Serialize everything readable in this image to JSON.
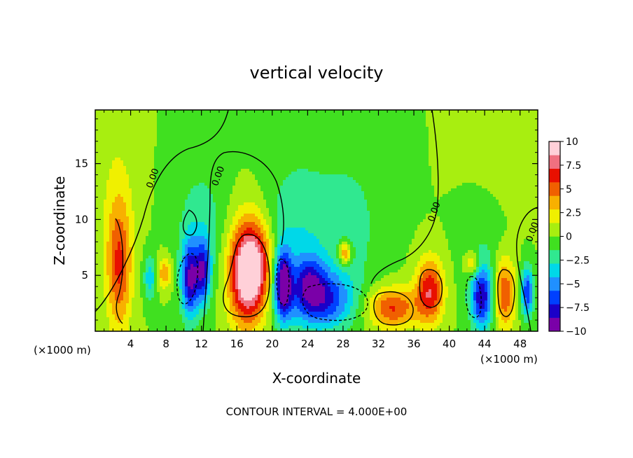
{
  "chart_data": {
    "type": "heatmap",
    "title": "vertical velocity",
    "xlabel": "X-coordinate",
    "ylabel": "Z-coordinate",
    "x_unit_left": "(×1000 m)",
    "x_unit_right": "(×1000 m)",
    "footer": "CONTOUR INTERVAL = 4.000E+00",
    "xlim": [
      0,
      50
    ],
    "ylim": [
      0,
      19.8
    ],
    "x_ticks": [
      4,
      8,
      12,
      16,
      20,
      24,
      28,
      32,
      36,
      40,
      44,
      48
    ],
    "y_ticks": [
      5,
      10,
      15
    ],
    "colorbar": {
      "min": -10,
      "max": 10,
      "tick_values": [
        10,
        7.5,
        5,
        2.5,
        0,
        -2.5,
        -5,
        -7.5,
        -10
      ],
      "tick_labels": [
        "10",
        "7.5",
        "5",
        "2.5",
        "0",
        "−2.5",
        "−5",
        "−7.5",
        "−10"
      ],
      "colors": [
        "#7a00a8",
        "#1a00c8",
        "#0040ff",
        "#2090ff",
        "#00d8e8",
        "#30e890",
        "#40e020",
        "#a8ee10",
        "#f0f000",
        "#f8b000",
        "#f06000",
        "#e81000",
        "#f07080",
        "#ffd0d8"
      ]
    },
    "contour_labels": [
      {
        "text": "0.00",
        "x": 6.8,
        "y": 13.6
      },
      {
        "text": "0.00",
        "x": 14.2,
        "y": 13.8
      },
      {
        "text": "0.00",
        "x": 38.6,
        "y": 10.6
      },
      {
        "text": "0.00",
        "x": 49.7,
        "y": 8.8
      }
    ],
    "features": [
      {
        "x": 2.7,
        "z": 5.6,
        "sx": 1.0,
        "sz": 4.0,
        "v": 5.5
      },
      {
        "x": 17.2,
        "z": 5.2,
        "sx": 1.5,
        "sz": 3.2,
        "v": 11
      },
      {
        "x": 18.6,
        "z": 6.3,
        "sx": 1.3,
        "sz": 2.6,
        "v": 3
      },
      {
        "x": 33.5,
        "z": 2.1,
        "sx": 2.0,
        "sz": 1.3,
        "v": 6
      },
      {
        "x": 37.8,
        "z": 3.6,
        "sx": 1.1,
        "sz": 2.0,
        "v": 7
      },
      {
        "x": 46.2,
        "z": 3.4,
        "sx": 0.9,
        "sz": 2.2,
        "v": 6
      },
      {
        "x": 28.2,
        "z": 7.0,
        "sx": 0.5,
        "sz": 0.7,
        "v": 6
      },
      {
        "x": 42.6,
        "z": 6.0,
        "sx": 0.6,
        "sz": 0.8,
        "v": 4
      },
      {
        "x": 7.8,
        "z": 5.2,
        "sx": 0.6,
        "sz": 1.0,
        "v": 4
      },
      {
        "x": 10.7,
        "z": 4.6,
        "sx": 0.7,
        "sz": 2.5,
        "v": -8
      },
      {
        "x": 12.2,
        "z": 5.3,
        "sx": 0.6,
        "sz": 2.0,
        "v": -7
      },
      {
        "x": 6.2,
        "z": 4.8,
        "sx": 0.5,
        "sz": 1.4,
        "v": -4
      },
      {
        "x": 21.2,
        "z": 4.2,
        "sx": 0.7,
        "sz": 2.2,
        "v": -9
      },
      {
        "x": 25.5,
        "z": 2.8,
        "sx": 2.5,
        "sz": 1.8,
        "v": -7
      },
      {
        "x": 24.2,
        "z": 4.8,
        "sx": 1.2,
        "sz": 1.6,
        "v": -4
      },
      {
        "x": 43.7,
        "z": 3.0,
        "sx": 0.9,
        "sz": 2.0,
        "v": -8
      },
      {
        "x": 48.8,
        "z": 3.5,
        "sx": 0.5,
        "sz": 1.6,
        "v": -7
      },
      {
        "x": 22.5,
        "z": 8.5,
        "sx": 2.5,
        "sz": 5.0,
        "v": -2.5
      },
      {
        "x": 28.5,
        "z": 9.5,
        "sx": 3.0,
        "sz": 5.0,
        "v": -2.0
      },
      {
        "x": 12.0,
        "z": 9.5,
        "sx": 2.0,
        "sz": 4.0,
        "v": -2.2
      },
      {
        "x": 44.0,
        "z": 8.0,
        "sx": 2.0,
        "sz": 4.0,
        "v": -1.5
      },
      {
        "x": 2.5,
        "z": 12.0,
        "sx": 1.5,
        "sz": 5.0,
        "v": 1.5
      },
      {
        "x": 45.0,
        "z": 13.0,
        "sx": 2.5,
        "sz": 5.0,
        "v": 0.8
      }
    ]
  }
}
